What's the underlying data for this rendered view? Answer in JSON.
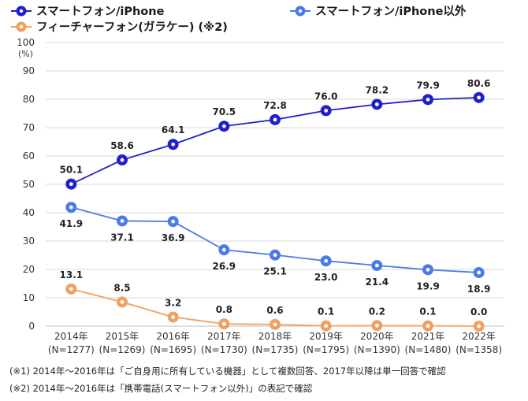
{
  "chart_data": {
    "type": "line",
    "y_unit": "(%)",
    "ylim": [
      0,
      100
    ],
    "y_ticks": [
      "0",
      "10",
      "20",
      "30",
      "40",
      "50",
      "60",
      "70",
      "80",
      "90",
      "100"
    ],
    "categories": [
      "2014年",
      "2015年",
      "2016年",
      "2017年",
      "2018年",
      "2019年",
      "2020年",
      "2021年",
      "2022年"
    ],
    "sample_sizes": [
      "(N=1277)",
      "(N=1269)",
      "(N=1695)",
      "(N=1730)",
      "(N=1735)",
      "(N=1795)",
      "(N=1390)",
      "(N=1480)",
      "(N=1358)"
    ],
    "grid": true,
    "legend_position": "top",
    "series": [
      {
        "name": "スマートフォン/iPhone",
        "color": "#1f1fcc",
        "values": [
          50.1,
          58.6,
          64.1,
          70.5,
          72.8,
          76.0,
          78.2,
          79.9,
          80.6
        ],
        "labels": [
          "50.1",
          "58.6",
          "64.1",
          "70.5",
          "72.8",
          "76.0",
          "78.2",
          "79.9",
          "80.6"
        ],
        "label_position": "above"
      },
      {
        "name": "スマートフォン/iPhone以外",
        "color": "#4a7be8",
        "values": [
          41.9,
          37.1,
          36.9,
          26.9,
          25.1,
          23.0,
          21.4,
          19.9,
          18.9
        ],
        "labels": [
          "41.9",
          "37.1",
          "36.9",
          "26.9",
          "25.1",
          "23.0",
          "21.4",
          "19.9",
          "18.9"
        ],
        "label_position": "below"
      },
      {
        "name": "フィーチャーフォン(ガラケー) (※2)",
        "color": "#f0a060",
        "values": [
          13.1,
          8.5,
          3.2,
          0.8,
          0.6,
          0.1,
          0.2,
          0.1,
          0.0
        ],
        "labels": [
          "13.1",
          "8.5",
          "3.2",
          "0.8",
          "0.6",
          "0.1",
          "0.2",
          "0.1",
          "0.0"
        ],
        "label_position": "above"
      }
    ]
  },
  "notes": [
    "(※1) 2014年～2016年は「ご自身用に所有している機器」として複数回答、2017年以降は単一回答で確認",
    "(※2) 2014年～2016年は「携帯電話(スマートフォン以外)」の表記で確認"
  ]
}
